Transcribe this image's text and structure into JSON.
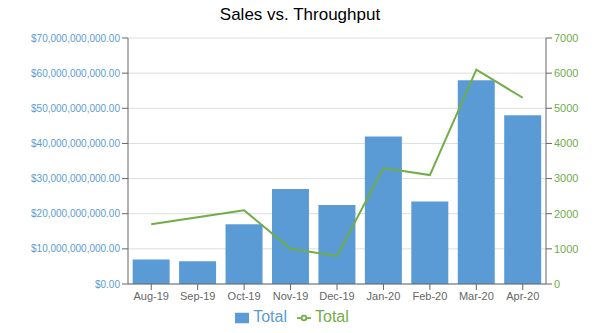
{
  "chart_data": {
    "type": "bar",
    "title": "Sales vs. Throughput",
    "categories": [
      "Aug-19",
      "Sep-19",
      "Oct-19",
      "Nov-19",
      "Dec-19",
      "Jan-20",
      "Feb-20",
      "Mar-20",
      "Apr-20"
    ],
    "series": [
      {
        "name": "Total",
        "type": "bar",
        "color": "#5B9BD5",
        "values": [
          7000000000,
          6500000000,
          17000000000,
          27000000000,
          22500000000,
          42000000000,
          23500000000,
          58000000000,
          48000000000
        ]
      },
      {
        "name": "Total",
        "type": "line",
        "color": "#70AD47",
        "axis": "y2",
        "values": [
          1700,
          1900,
          2100,
          1000,
          800,
          3300,
          3100,
          6100,
          5300
        ]
      }
    ],
    "ylim": [
      0,
      70000000000
    ],
    "yticks": [
      {
        "value": 0,
        "label": "$0.00"
      },
      {
        "value": 10000000000,
        "label": "$10,000,000,000.00"
      },
      {
        "value": 20000000000,
        "label": "$20,000,000,000.00"
      },
      {
        "value": 30000000000,
        "label": "$30,000,000,000.00"
      },
      {
        "value": 40000000000,
        "label": "$40,000,000,000.00"
      },
      {
        "value": 50000000000,
        "label": "$50,000,000,000.00"
      },
      {
        "value": 60000000000,
        "label": "$60,000,000,000.00"
      },
      {
        "value": 70000000000,
        "label": "$70,000,000,000.00"
      }
    ],
    "y2lim": [
      0,
      7000
    ],
    "y2ticks": [
      0,
      1000,
      2000,
      3000,
      4000,
      5000,
      6000,
      7000
    ],
    "grid": true,
    "legend": "bottom"
  }
}
